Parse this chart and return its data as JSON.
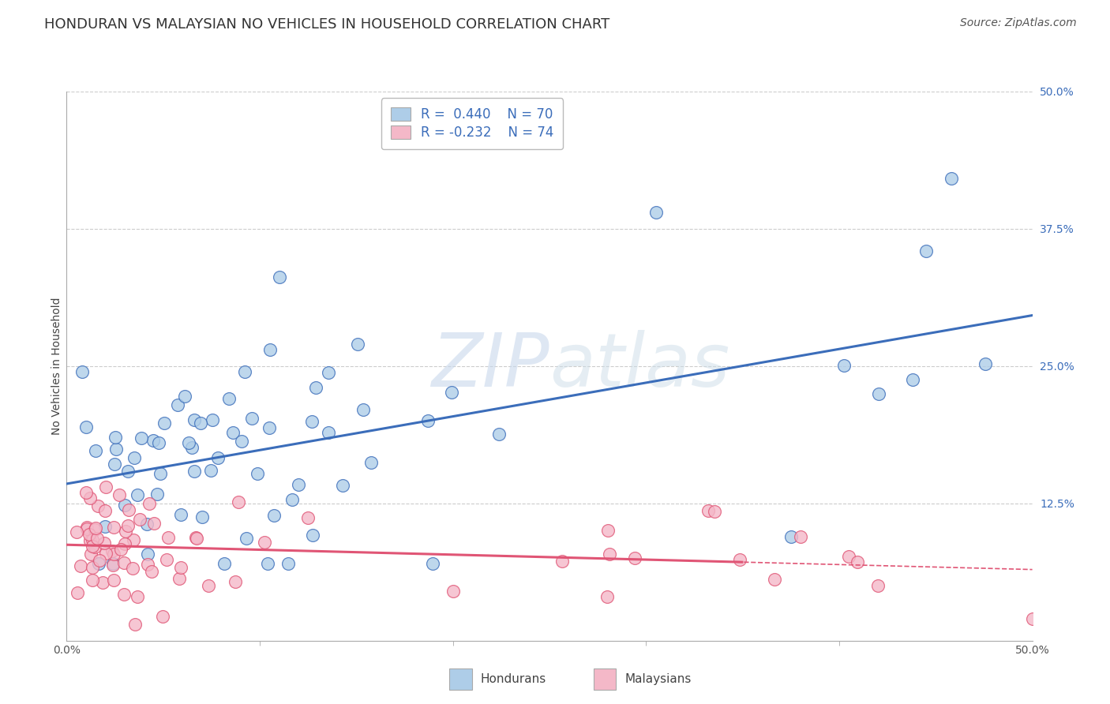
{
  "title": "HONDURAN VS MALAYSIAN NO VEHICLES IN HOUSEHOLD CORRELATION CHART",
  "source": "Source: ZipAtlas.com",
  "ylabel": "No Vehicles in Household",
  "xmin": 0.0,
  "xmax": 0.5,
  "ymin": 0.0,
  "ymax": 0.5,
  "ytick_labels_right": [
    "50.0%",
    "37.5%",
    "25.0%",
    "12.5%"
  ],
  "ytick_positions_right": [
    0.5,
    0.375,
    0.25,
    0.125
  ],
  "grid_color": "#cccccc",
  "honduran_color": "#aecde8",
  "malaysian_color": "#f4b8c8",
  "honduran_line_color": "#3b6dba",
  "malaysian_line_color": "#e05575",
  "R_honduran": 0.44,
  "N_honduran": 70,
  "R_malaysian": -0.232,
  "N_malaysian": 74,
  "legend_label_honduran": "Hondurans",
  "legend_label_malaysian": "Malaysians",
  "watermark_zip": "ZIP",
  "watermark_atlas": "atlas",
  "title_fontsize": 13,
  "source_fontsize": 10,
  "axis_label_fontsize": 10,
  "tick_fontsize": 10,
  "bg_color": "#ffffff"
}
